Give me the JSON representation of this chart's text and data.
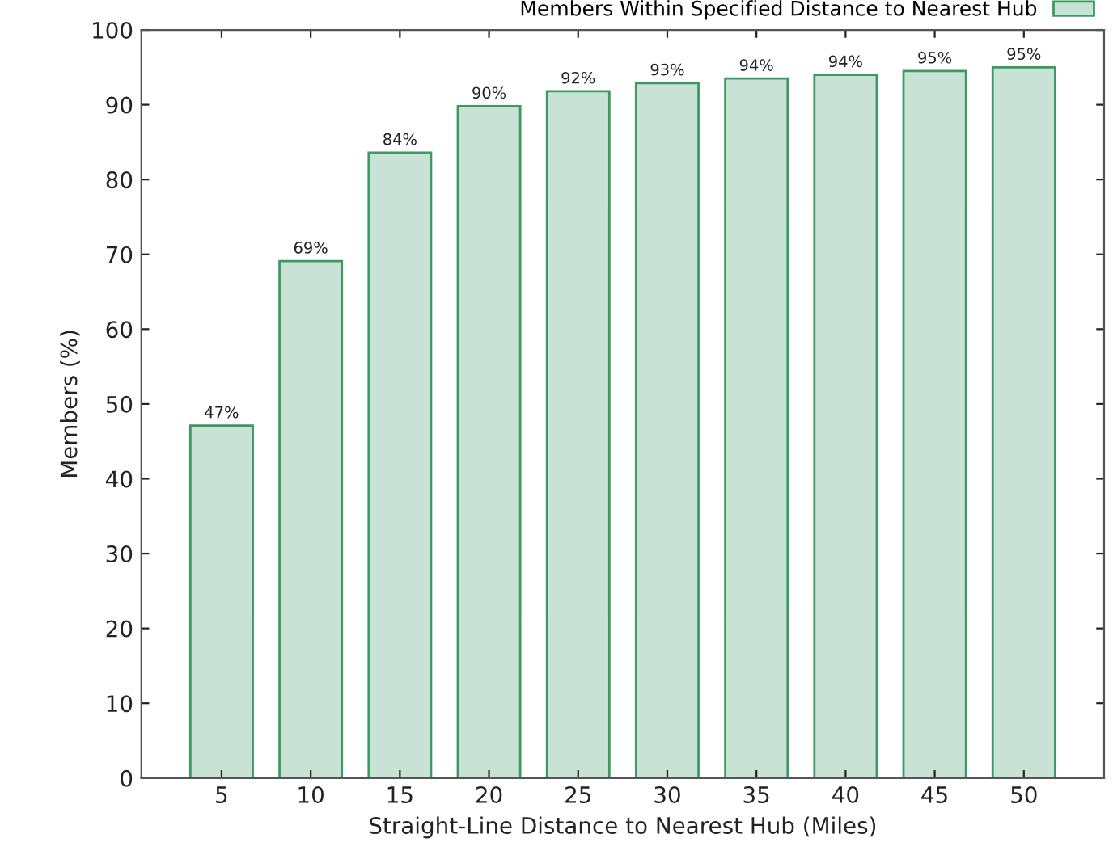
{
  "chart_data": {
    "type": "bar",
    "xlabel": "Straight-Line Distance to Nearest Hub (Miles)",
    "ylabel": "Members (%)",
    "categories": [
      "5",
      "10",
      "15",
      "20",
      "25",
      "30",
      "35",
      "40",
      "45",
      "50"
    ],
    "series": [
      {
        "name": "Members Within Specified Distance to Nearest Hub",
        "color": "#c8e2d6",
        "values": [
          47.1,
          69.1,
          83.6,
          89.8,
          91.8,
          92.9,
          93.5,
          94.0,
          94.5,
          95.0
        ],
        "value_labels": [
          "47%",
          "69%",
          "84%",
          "90%",
          "92%",
          "93%",
          "94%",
          "94%",
          "95%",
          "95%"
        ]
      }
    ],
    "ylim": [
      0,
      100
    ],
    "yticks": [
      0,
      10,
      20,
      30,
      40,
      50,
      60,
      70,
      80,
      90,
      100
    ],
    "grid": false,
    "legend": "top right"
  }
}
